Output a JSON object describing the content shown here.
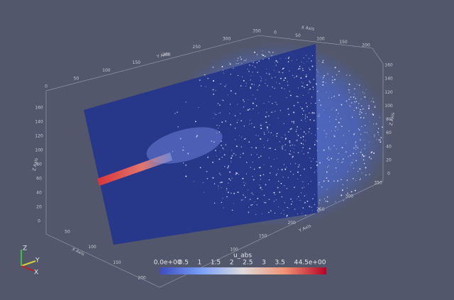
{
  "colorbar": {
    "title": "u_abs",
    "labels": [
      "0.0e+00",
      "0.5",
      "1",
      "1.5",
      "2",
      "2.5",
      "3",
      "3.5",
      "4",
      "4.5e+00"
    ]
  },
  "orientation_axes": {
    "z": "Z",
    "y": "Y",
    "x": "X"
  },
  "axes": {
    "y_axis_top": {
      "title": "Y Axis",
      "ticks": [
        "0",
        "50",
        "100",
        "150",
        "200",
        "250",
        "300",
        "350"
      ]
    },
    "x_axis_top": {
      "title": "X Axis",
      "ticks": [
        "0",
        "50",
        "100",
        "150",
        "200"
      ]
    },
    "z_axis_left": {
      "title": "Z Axis",
      "ticks": [
        "0",
        "20",
        "40",
        "60",
        "80",
        "100",
        "120",
        "140",
        "160"
      ]
    },
    "z_axis_right": {
      "title": "Z Axis",
      "ticks": [
        "0",
        "20",
        "40",
        "60",
        "80",
        "100",
        "120",
        "140",
        "160"
      ]
    },
    "y_axis_bottom": {
      "title": "Y Axis",
      "ticks": [
        "100",
        "150",
        "200",
        "250",
        "300",
        "350"
      ]
    },
    "x_axis_bottom": {
      "title": "X Axis",
      "ticks": [
        "50",
        "100",
        "150",
        "200"
      ]
    }
  }
}
